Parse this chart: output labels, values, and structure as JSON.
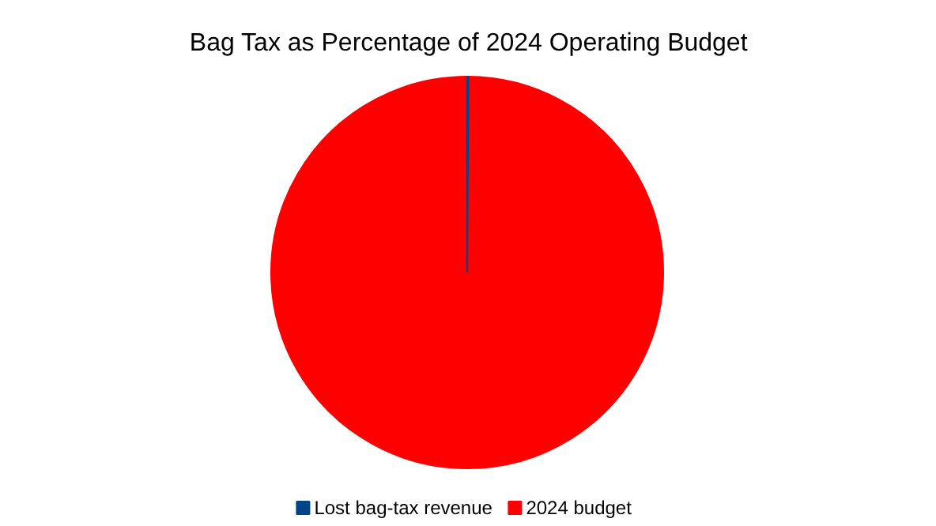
{
  "chart_data": {
    "type": "pie",
    "title": "Bag Tax as Percentage of 2024 Operating Budget",
    "categories": [
      "Lost bag-tax revenue",
      "2024 budget"
    ],
    "values": [
      0.1,
      99.9
    ],
    "colors": [
      "#004586",
      "#ff0000"
    ],
    "legend": "bottom"
  }
}
